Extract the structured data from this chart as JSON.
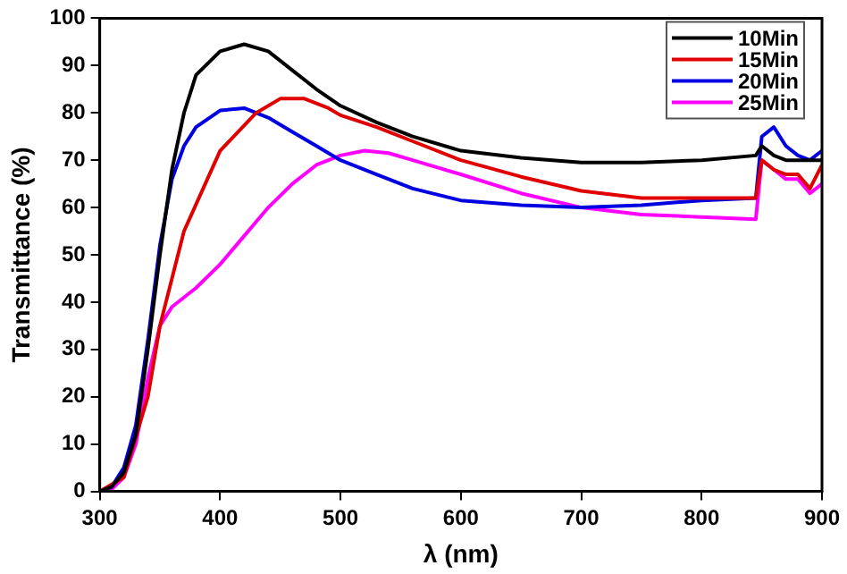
{
  "chart_data": {
    "type": "line",
    "xlabel": "λ (nm)",
    "ylabel": "Transmittance (%)",
    "xlim": [
      300,
      900
    ],
    "xticks": [
      300,
      400,
      500,
      600,
      700,
      800,
      900
    ],
    "ylim": [
      0,
      100
    ],
    "yticks": [
      0,
      10,
      20,
      30,
      40,
      50,
      60,
      70,
      80,
      90,
      100
    ],
    "grid": false,
    "legend": "top right",
    "marker": "none",
    "line_style": "solid",
    "series": [
      {
        "name": "10Min",
        "color": "#000000",
        "x": [
          300,
          310,
          320,
          330,
          340,
          350,
          360,
          370,
          380,
          400,
          420,
          440,
          460,
          480,
          500,
          530,
          560,
          600,
          650,
          700,
          750,
          800,
          845,
          850,
          860,
          870,
          880,
          890,
          900
        ],
        "values": [
          0,
          1,
          4,
          12,
          30,
          50,
          68,
          80,
          88,
          93,
          94.5,
          93,
          89,
          85,
          81.5,
          78,
          75,
          72,
          70.5,
          69.5,
          69.5,
          70,
          71,
          73,
          71,
          70,
          70,
          70,
          70
        ]
      },
      {
        "name": "15Min",
        "color": "#e00000",
        "x": [
          300,
          320,
          340,
          350,
          370,
          400,
          430,
          450,
          470,
          490,
          500,
          530,
          560,
          600,
          650,
          700,
          750,
          800,
          845,
          850,
          860,
          870,
          880,
          890,
          900
        ],
        "values": [
          0,
          3,
          20,
          35,
          55,
          72,
          80,
          83,
          83,
          81,
          79.5,
          77,
          74,
          70,
          66.5,
          63.5,
          62,
          62,
          62,
          70,
          68,
          67,
          67,
          64,
          69
        ]
      },
      {
        "name": "20Min",
        "color": "#0000e0",
        "x": [
          300,
          310,
          320,
          330,
          340,
          350,
          360,
          370,
          380,
          400,
          420,
          440,
          460,
          480,
          500,
          530,
          560,
          600,
          650,
          700,
          750,
          800,
          845,
          850,
          860,
          870,
          880,
          890,
          900
        ],
        "values": [
          0,
          1,
          5,
          14,
          32,
          52,
          66,
          73,
          77,
          80.5,
          81,
          79,
          76,
          73,
          70,
          67,
          64,
          61.5,
          60.5,
          60,
          60.5,
          61.5,
          62,
          75,
          77,
          73,
          71,
          70,
          72
        ]
      },
      {
        "name": "25Min",
        "color": "#ff00ff",
        "x": [
          300,
          310,
          320,
          330,
          340,
          350,
          360,
          380,
          400,
          420,
          440,
          460,
          480,
          500,
          520,
          540,
          560,
          600,
          650,
          700,
          750,
          800,
          845,
          850,
          860,
          870,
          880,
          890,
          900
        ],
        "values": [
          0,
          0.5,
          3,
          10,
          24,
          35,
          39,
          43,
          48,
          54,
          60,
          65,
          69,
          71,
          72,
          71.5,
          70,
          67,
          63,
          60,
          58.5,
          58,
          57.5,
          70,
          68,
          66,
          66,
          63,
          65
        ]
      }
    ]
  }
}
